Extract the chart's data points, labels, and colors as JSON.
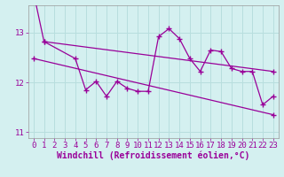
{
  "xlabel": "Windchill (Refroidissement éolien,°C)",
  "x": [
    0,
    1,
    2,
    3,
    4,
    5,
    6,
    7,
    8,
    9,
    10,
    11,
    12,
    13,
    14,
    15,
    16,
    17,
    18,
    19,
    20,
    21,
    22,
    23
  ],
  "line1": [
    13.8,
    12.82,
    null,
    null,
    12.48,
    11.85,
    12.02,
    11.72,
    12.02,
    11.88,
    11.82,
    11.82,
    12.92,
    13.08,
    12.88,
    12.48,
    12.22,
    12.65,
    12.62,
    12.28,
    12.22,
    12.22,
    11.55,
    11.72
  ],
  "upper_trend_x": [
    1,
    23
  ],
  "upper_trend_y": [
    12.82,
    12.22
  ],
  "lower_trend_x": [
    0,
    23
  ],
  "lower_trend_y": [
    12.48,
    11.35
  ],
  "line_color": "#990099",
  "bg_color": "#d4f0f0",
  "grid_color": "#b8dede",
  "ylim": [
    10.88,
    13.55
  ],
  "yticks": [
    11,
    12,
    13
  ],
  "xticks": [
    0,
    1,
    2,
    3,
    4,
    5,
    6,
    7,
    8,
    9,
    10,
    11,
    12,
    13,
    14,
    15,
    16,
    17,
    18,
    19,
    20,
    21,
    22,
    23
  ],
  "tick_fontsize": 6.5,
  "xlabel_fontsize": 7.0,
  "marker": "+",
  "markersize": 4,
  "linewidth": 0.9
}
